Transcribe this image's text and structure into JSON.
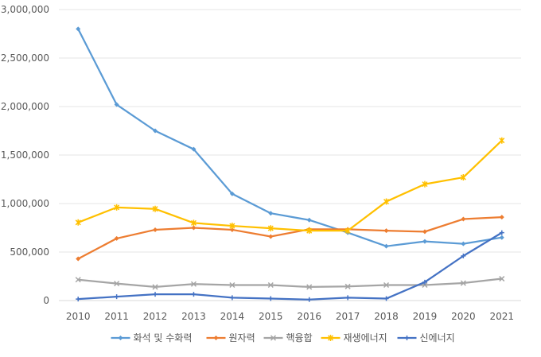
{
  "chart_data": {
    "type": "line",
    "x": [
      "2010",
      "2011",
      "2012",
      "2013",
      "2014",
      "2015",
      "2016",
      "2017",
      "2018",
      "2019",
      "2020",
      "2021"
    ],
    "ylim": [
      0,
      3000000
    ],
    "yticks": [
      0,
      500000,
      1000000,
      1500000,
      2000000,
      2500000,
      3000000
    ],
    "ytick_labels": [
      "0",
      "500,000",
      "1,000,000",
      "1,500,000",
      "2,000,000",
      "2,500,000",
      "3,000,000"
    ],
    "grid": true,
    "legend_position": "bottom",
    "series": [
      {
        "name": "화석 및 수화력",
        "color": "#5B9BD5",
        "marker": "diamond",
        "values": [
          2800000,
          2020000,
          1750000,
          1560000,
          1100000,
          900000,
          830000,
          700000,
          560000,
          610000,
          585000,
          650000
        ]
      },
      {
        "name": "원자력",
        "color": "#ED7D31",
        "marker": "diamond",
        "values": [
          430000,
          640000,
          730000,
          750000,
          730000,
          660000,
          735000,
          735000,
          720000,
          710000,
          840000,
          860000
        ]
      },
      {
        "name": "핵융합",
        "color": "#A5A5A5",
        "marker": "x",
        "values": [
          215000,
          175000,
          140000,
          170000,
          160000,
          160000,
          140000,
          145000,
          160000,
          160000,
          180000,
          225000
        ]
      },
      {
        "name": "재생에너지",
        "color": "#FFC000",
        "marker": "star",
        "values": [
          805000,
          960000,
          945000,
          800000,
          770000,
          745000,
          720000,
          720000,
          1020000,
          1200000,
          1270000,
          1650000
        ]
      },
      {
        "name": "신에너지",
        "color": "#4472C4",
        "marker": "plus",
        "values": [
          15000,
          40000,
          65000,
          65000,
          30000,
          20000,
          10000,
          30000,
          20000,
          190000,
          460000,
          700000
        ]
      }
    ]
  }
}
